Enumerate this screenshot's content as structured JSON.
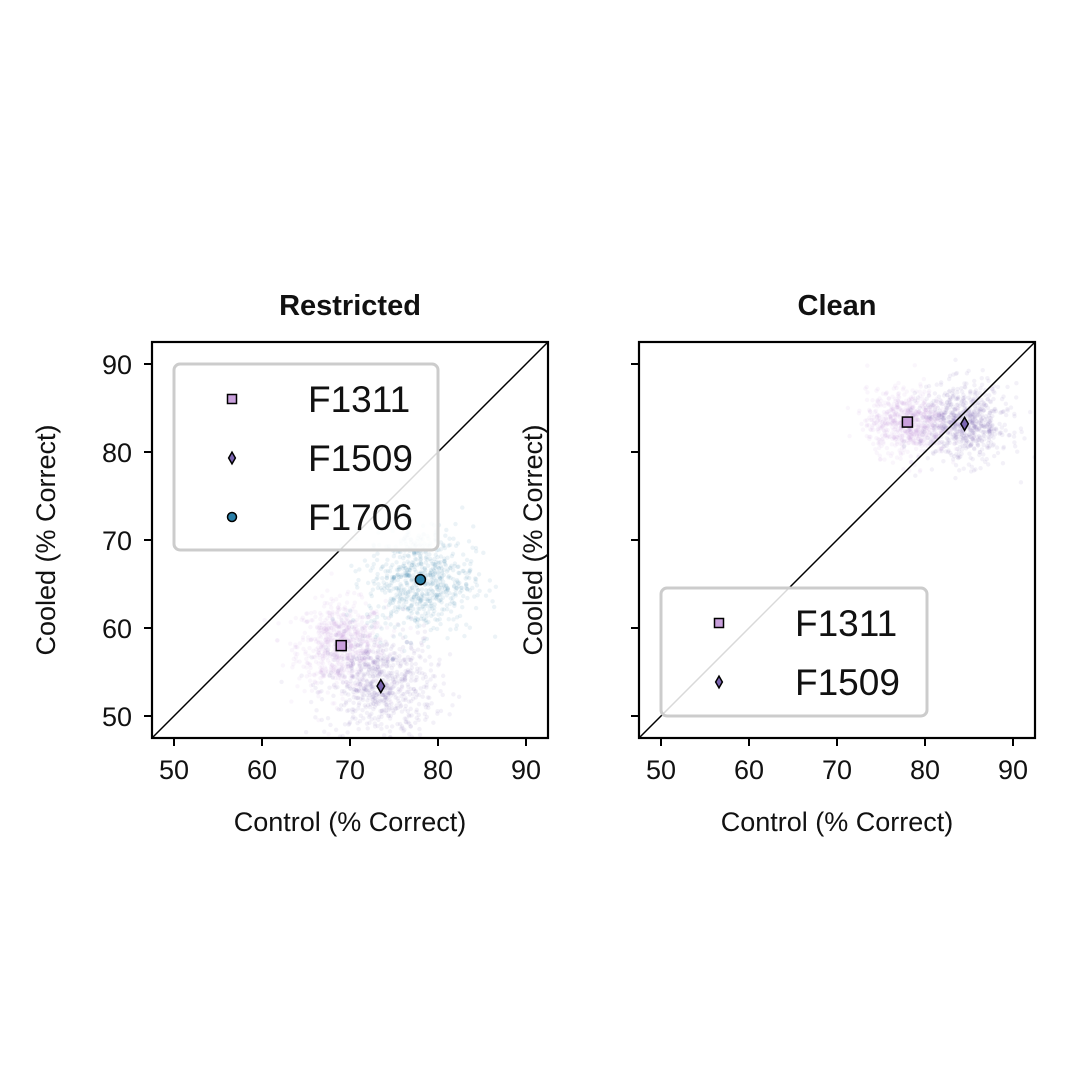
{
  "colors": {
    "F1311": "#c9a0dc",
    "F1509": "#7a64b0",
    "F1706": "#2a7fa8",
    "axis": "#000000",
    "legend_border": "#cccccc"
  },
  "chart_data": [
    {
      "type": "scatter",
      "title": "Restricted",
      "xlabel": "Control (% Correct)",
      "ylabel": "Cooled (% Correct)",
      "xlim": [
        47.5,
        92.5
      ],
      "ylim": [
        47.5,
        92.5
      ],
      "xticks": [
        50,
        60,
        70,
        80,
        90
      ],
      "yticks": [
        50,
        60,
        70,
        80,
        90
      ],
      "show_yticklabels": true,
      "diagonal": true,
      "grid": false,
      "legend_position": "upper-left",
      "series": [
        {
          "name": "F1311",
          "marker": "square",
          "x": 69,
          "y": 58,
          "spread": [
            2.5,
            2.5
          ]
        },
        {
          "name": "F1509",
          "marker": "diamond",
          "x": 73.5,
          "y": 53.4,
          "spread": [
            3,
            3
          ]
        },
        {
          "name": "F1706",
          "marker": "circle",
          "x": 78,
          "y": 65.5,
          "spread": [
            3,
            3
          ]
        }
      ]
    },
    {
      "type": "scatter",
      "title": "Clean",
      "xlabel": "Control (% Correct)",
      "ylabel": "Cooled (% Correct)",
      "xlim": [
        47.5,
        92.5
      ],
      "ylim": [
        47.5,
        92.5
      ],
      "xticks": [
        50,
        60,
        70,
        80,
        90
      ],
      "yticks": [
        50,
        60,
        70,
        80,
        90
      ],
      "show_yticklabels": false,
      "diagonal": true,
      "grid": false,
      "legend_position": "lower-left",
      "series": [
        {
          "name": "F1311",
          "marker": "square",
          "x": 78,
          "y": 83.4,
          "spread": [
            2.3,
            1.8
          ]
        },
        {
          "name": "F1509",
          "marker": "diamond",
          "x": 84.5,
          "y": 83.2,
          "spread": [
            2.5,
            2.2
          ]
        }
      ]
    }
  ]
}
